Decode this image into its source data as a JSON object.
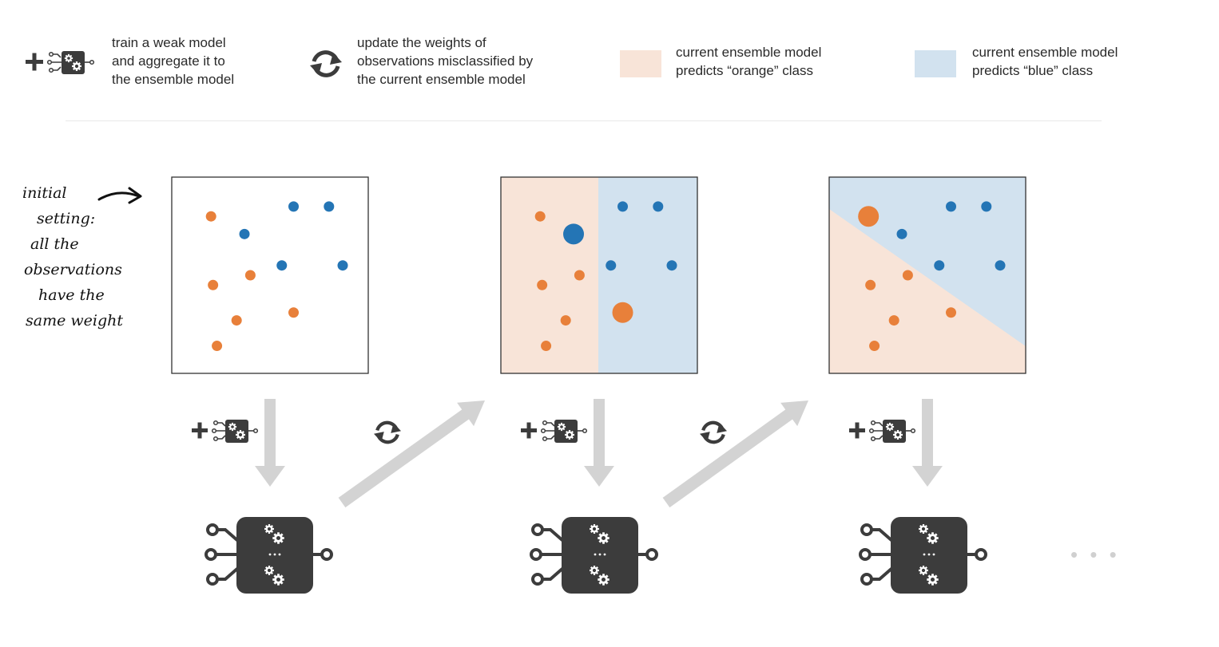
{
  "legend": {
    "train_text": [
      "train a weak model",
      "and aggregate it to",
      "the ensemble model"
    ],
    "update_text": [
      "update the weights of",
      "observations misclassified by",
      "the current ensemble model"
    ],
    "orange_text": [
      "current ensemble model",
      "predicts “orange” class"
    ],
    "blue_text": [
      "current ensemble model",
      "predicts “blue” class"
    ],
    "train_icon": "plus-weak-model-icon",
    "update_icon": "refresh-cycle-icon"
  },
  "annotation": [
    "initial",
    "setting:",
    "all the",
    "observations",
    "have the",
    "same weight"
  ],
  "colors": {
    "orange": "#e8803a",
    "blue": "#2475b5",
    "orange_region": "#f8e4d8",
    "blue_region": "#d2e2ef",
    "arrow": "#d3d3d3",
    "model": "#3c3c3c"
  },
  "continuation": "• • •",
  "panels": [
    {
      "name": "initial-setting",
      "regions": "none",
      "points": [
        {
          "cls": "orange",
          "x": 0.2,
          "y": 0.2,
          "weight": 1
        },
        {
          "cls": "blue",
          "x": 0.37,
          "y": 0.29,
          "weight": 1
        },
        {
          "cls": "blue",
          "x": 0.62,
          "y": 0.15,
          "weight": 1
        },
        {
          "cls": "blue",
          "x": 0.8,
          "y": 0.15,
          "weight": 1
        },
        {
          "cls": "blue",
          "x": 0.56,
          "y": 0.45,
          "weight": 1
        },
        {
          "cls": "blue",
          "x": 0.87,
          "y": 0.45,
          "weight": 1
        },
        {
          "cls": "orange",
          "x": 0.4,
          "y": 0.5,
          "weight": 1
        },
        {
          "cls": "orange",
          "x": 0.21,
          "y": 0.55,
          "weight": 1
        },
        {
          "cls": "orange",
          "x": 0.62,
          "y": 0.69,
          "weight": 1
        },
        {
          "cls": "orange",
          "x": 0.33,
          "y": 0.73,
          "weight": 1
        },
        {
          "cls": "orange",
          "x": 0.23,
          "y": 0.86,
          "weight": 1
        }
      ]
    },
    {
      "name": "after-first-model",
      "regions": "vertical-split",
      "points": [
        {
          "cls": "orange",
          "x": 0.2,
          "y": 0.2,
          "weight": 1
        },
        {
          "cls": "blue",
          "x": 0.37,
          "y": 0.29,
          "weight": 3
        },
        {
          "cls": "blue",
          "x": 0.62,
          "y": 0.15,
          "weight": 1
        },
        {
          "cls": "blue",
          "x": 0.8,
          "y": 0.15,
          "weight": 1
        },
        {
          "cls": "blue",
          "x": 0.56,
          "y": 0.45,
          "weight": 1
        },
        {
          "cls": "blue",
          "x": 0.87,
          "y": 0.45,
          "weight": 1
        },
        {
          "cls": "orange",
          "x": 0.4,
          "y": 0.5,
          "weight": 1
        },
        {
          "cls": "orange",
          "x": 0.21,
          "y": 0.55,
          "weight": 1
        },
        {
          "cls": "orange",
          "x": 0.62,
          "y": 0.69,
          "weight": 3
        },
        {
          "cls": "orange",
          "x": 0.33,
          "y": 0.73,
          "weight": 1
        },
        {
          "cls": "orange",
          "x": 0.23,
          "y": 0.86,
          "weight": 1
        }
      ]
    },
    {
      "name": "after-second-model",
      "regions": "diagonal-split",
      "points": [
        {
          "cls": "orange",
          "x": 0.2,
          "y": 0.2,
          "weight": 3
        },
        {
          "cls": "blue",
          "x": 0.37,
          "y": 0.29,
          "weight": 1
        },
        {
          "cls": "blue",
          "x": 0.62,
          "y": 0.15,
          "weight": 1
        },
        {
          "cls": "blue",
          "x": 0.8,
          "y": 0.15,
          "weight": 1
        },
        {
          "cls": "blue",
          "x": 0.56,
          "y": 0.45,
          "weight": 1
        },
        {
          "cls": "blue",
          "x": 0.87,
          "y": 0.45,
          "weight": 1
        },
        {
          "cls": "orange",
          "x": 0.4,
          "y": 0.5,
          "weight": 1
        },
        {
          "cls": "orange",
          "x": 0.21,
          "y": 0.55,
          "weight": 1
        },
        {
          "cls": "orange",
          "x": 0.62,
          "y": 0.69,
          "weight": 1
        },
        {
          "cls": "orange",
          "x": 0.33,
          "y": 0.73,
          "weight": 1
        },
        {
          "cls": "orange",
          "x": 0.23,
          "y": 0.86,
          "weight": 1
        }
      ]
    }
  ]
}
